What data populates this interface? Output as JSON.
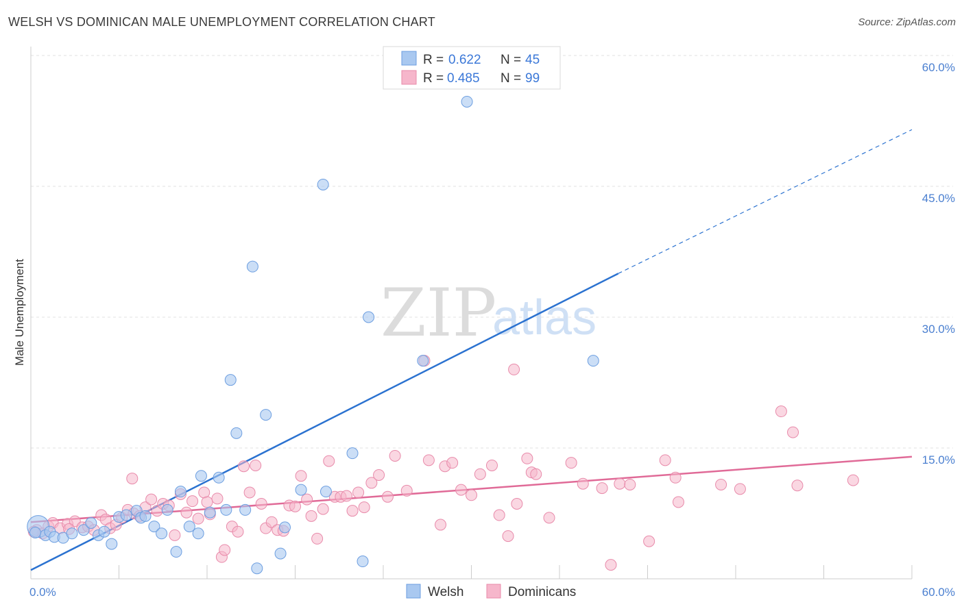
{
  "title": "WELSH VS DOMINICAN MALE UNEMPLOYMENT CORRELATION CHART",
  "source": "Source: ZipAtlas.com",
  "watermark": {
    "part1": "ZIP",
    "part2": "atlas"
  },
  "colors": {
    "welsh_fill": "#a9c8f0",
    "welsh_stroke": "#6c9ee0",
    "welsh_line": "#2b72d0",
    "dom_fill": "#f6b6cb",
    "dom_stroke": "#e88aaa",
    "dom_line": "#e06a97",
    "grid": "#e2e2e2",
    "tick_label": "#4a7fd0"
  },
  "legend": {
    "welsh": {
      "r_label": "R = ",
      "r_value": "0.622",
      "n_label": "N = ",
      "n_value": "45"
    },
    "dominicans": {
      "r_label": "R = ",
      "r_value": "0.485",
      "n_label": "N = ",
      "n_value": "99"
    }
  },
  "chart_data": {
    "type": "scatter",
    "title": "WELSH VS DOMINICAN MALE UNEMPLOYMENT CORRELATION CHART",
    "xlabel": "",
    "ylabel": "Male Unemployment",
    "xlim": [
      0,
      60
    ],
    "ylim": [
      0,
      60
    ],
    "x_tick_labels": [
      "0.0%",
      "60.0%"
    ],
    "y_ticks": [
      15,
      30,
      45,
      60
    ],
    "y_tick_labels": [
      "15.0%",
      "30.0%",
      "45.0%",
      "60.0%"
    ],
    "legend_position": "top-center",
    "series": [
      {
        "name": "Welsh",
        "trend": {
          "x0": 0,
          "y0": 1.0,
          "x1": 40,
          "y1": 35,
          "dashed_to_x": 60,
          "dashed_to_y": 51.5
        },
        "points": [
          [
            0.5,
            6.0
          ],
          [
            1.0,
            5.0
          ],
          [
            1.3,
            5.4
          ],
          [
            1.6,
            4.8
          ],
          [
            2.2,
            4.7
          ],
          [
            2.8,
            5.2
          ],
          [
            3.6,
            5.6
          ],
          [
            4.1,
            6.4
          ],
          [
            4.6,
            5.0
          ],
          [
            5.0,
            5.4
          ],
          [
            5.5,
            4.0
          ],
          [
            6.0,
            7.1
          ],
          [
            6.5,
            7.3
          ],
          [
            7.2,
            7.8
          ],
          [
            7.5,
            7.0
          ],
          [
            7.8,
            7.2
          ],
          [
            8.4,
            6.0
          ],
          [
            8.9,
            5.2
          ],
          [
            9.3,
            7.9
          ],
          [
            9.9,
            3.1
          ],
          [
            10.2,
            10.0
          ],
          [
            10.8,
            6.0
          ],
          [
            11.4,
            5.2
          ],
          [
            11.6,
            11.8
          ],
          [
            12.2,
            7.6
          ],
          [
            12.8,
            11.6
          ],
          [
            13.3,
            7.9
          ],
          [
            13.6,
            22.8
          ],
          [
            14.0,
            16.7
          ],
          [
            14.6,
            7.9
          ],
          [
            15.1,
            35.8
          ],
          [
            15.4,
            1.2
          ],
          [
            16.0,
            18.8
          ],
          [
            17.0,
            2.9
          ],
          [
            17.3,
            5.9
          ],
          [
            18.4,
            10.2
          ],
          [
            19.9,
            45.2
          ],
          [
            20.1,
            10.0
          ],
          [
            21.9,
            14.4
          ],
          [
            22.6,
            2.0
          ],
          [
            23.0,
            30.0
          ],
          [
            26.7,
            25.0
          ],
          [
            29.7,
            54.7
          ],
          [
            38.3,
            25.0
          ],
          [
            0.3,
            5.3
          ]
        ]
      },
      {
        "name": "Dominicans",
        "trend": {
          "x0": 0,
          "y0": 6.5,
          "x1": 60,
          "y1": 14.0
        },
        "points": [
          [
            0.4,
            5.6
          ],
          [
            0.8,
            5.2
          ],
          [
            1.2,
            6.0
          ],
          [
            1.5,
            6.4
          ],
          [
            2.0,
            5.8
          ],
          [
            2.5,
            6.3
          ],
          [
            3.0,
            6.6
          ],
          [
            3.5,
            5.9
          ],
          [
            3.9,
            6.0
          ],
          [
            4.3,
            5.6
          ],
          [
            4.8,
            7.3
          ],
          [
            5.1,
            6.8
          ],
          [
            5.4,
            5.8
          ],
          [
            5.8,
            6.2
          ],
          [
            6.2,
            7.0
          ],
          [
            6.6,
            7.9
          ],
          [
            7.0,
            7.5
          ],
          [
            7.4,
            7.2
          ],
          [
            7.8,
            8.2
          ],
          [
            8.2,
            9.1
          ],
          [
            8.6,
            7.8
          ],
          [
            9.0,
            8.6
          ],
          [
            9.4,
            8.4
          ],
          [
            9.8,
            5.0
          ],
          [
            10.2,
            9.7
          ],
          [
            10.6,
            7.6
          ],
          [
            11.0,
            8.9
          ],
          [
            11.4,
            6.9
          ],
          [
            11.8,
            9.9
          ],
          [
            12.2,
            7.4
          ],
          [
            12.7,
            9.2
          ],
          [
            13.0,
            2.5
          ],
          [
            13.2,
            3.3
          ],
          [
            13.7,
            6.0
          ],
          [
            14.1,
            5.4
          ],
          [
            14.5,
            12.9
          ],
          [
            14.9,
            9.9
          ],
          [
            15.3,
            13.0
          ],
          [
            15.7,
            8.6
          ],
          [
            16.0,
            5.8
          ],
          [
            16.4,
            6.5
          ],
          [
            16.8,
            5.6
          ],
          [
            17.2,
            5.5
          ],
          [
            17.6,
            8.4
          ],
          [
            18.0,
            8.3
          ],
          [
            18.4,
            11.8
          ],
          [
            18.8,
            9.1
          ],
          [
            19.1,
            7.2
          ],
          [
            19.5,
            4.6
          ],
          [
            19.9,
            8.0
          ],
          [
            20.3,
            13.5
          ],
          [
            20.7,
            9.4
          ],
          [
            21.1,
            9.4
          ],
          [
            21.5,
            9.5
          ],
          [
            21.9,
            7.8
          ],
          [
            22.3,
            9.9
          ],
          [
            22.7,
            8.2
          ],
          [
            23.2,
            11.0
          ],
          [
            23.7,
            11.9
          ],
          [
            24.3,
            9.4
          ],
          [
            24.8,
            14.1
          ],
          [
            25.6,
            10.1
          ],
          [
            26.8,
            25.0
          ],
          [
            27.1,
            13.6
          ],
          [
            27.9,
            6.2
          ],
          [
            28.2,
            12.9
          ],
          [
            28.7,
            13.3
          ],
          [
            29.3,
            10.2
          ],
          [
            30.0,
            9.6
          ],
          [
            30.6,
            12.0
          ],
          [
            31.4,
            13.0
          ],
          [
            31.9,
            7.3
          ],
          [
            32.5,
            4.9
          ],
          [
            32.9,
            24.0
          ],
          [
            33.1,
            8.6
          ],
          [
            33.8,
            13.8
          ],
          [
            34.1,
            12.2
          ],
          [
            34.4,
            12.0
          ],
          [
            35.3,
            7.0
          ],
          [
            36.8,
            13.3
          ],
          [
            37.6,
            10.9
          ],
          [
            38.9,
            10.4
          ],
          [
            39.5,
            1.6
          ],
          [
            40.1,
            10.9
          ],
          [
            40.8,
            10.8
          ],
          [
            42.1,
            4.3
          ],
          [
            43.2,
            13.6
          ],
          [
            43.9,
            11.6
          ],
          [
            44.1,
            8.8
          ],
          [
            47.0,
            10.8
          ],
          [
            48.3,
            10.3
          ],
          [
            51.1,
            19.2
          ],
          [
            51.9,
            16.8
          ],
          [
            52.2,
            10.7
          ],
          [
            56.0,
            11.3
          ],
          [
            0.2,
            5.4
          ],
          [
            2.6,
            5.7
          ],
          [
            12.0,
            8.8
          ],
          [
            6.9,
            11.5
          ]
        ]
      }
    ]
  },
  "bottom_legend": [
    "Welsh",
    "Dominicans"
  ]
}
